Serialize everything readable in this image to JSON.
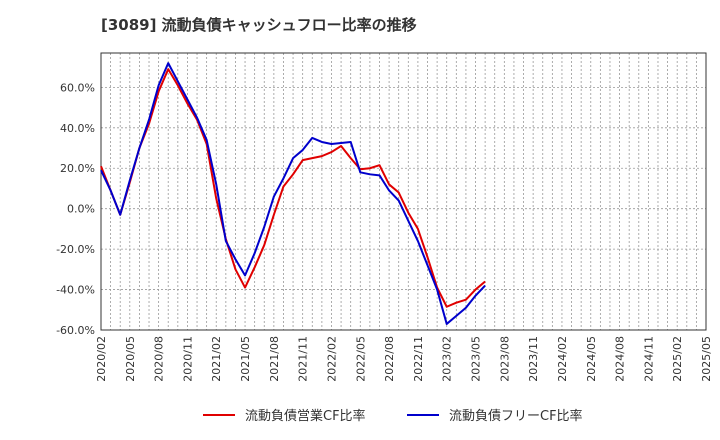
{
  "chart_data": {
    "type": "line",
    "title": "[3089]  流動負債キャッシュフロー比率の推移",
    "y_tick_labels": [
      "60.0%",
      "40.0%",
      "20.0%",
      "0.0%",
      "-20.0%",
      "-40.0%",
      "-60.0%"
    ],
    "y_ticks": [
      60,
      40,
      20,
      0,
      -20,
      -40,
      -60
    ],
    "ylim": [
      -60,
      77
    ],
    "x_tick_labels": [
      "2020/02",
      "2020/05",
      "2020/08",
      "2020/11",
      "2021/02",
      "2021/05",
      "2021/08",
      "2021/11",
      "2022/02",
      "2022/05",
      "2022/08",
      "2022/11",
      "2023/02",
      "2023/05",
      "2023/08",
      "2023/11",
      "2024/02",
      "2024/05",
      "2024/08",
      "2024/11",
      "2025/02",
      "2025/05"
    ],
    "grid": true,
    "legend_position": "bottom",
    "series": [
      {
        "name": "流動負債営業CF比率",
        "color": "#e00000",
        "values": [
          21,
          9,
          -3,
          13,
          30,
          42,
          58,
          69,
          61,
          52,
          44,
          32,
          5,
          -15,
          -30,
          -39,
          -29,
          -18,
          -3,
          11,
          17,
          24,
          25,
          26,
          28,
          31,
          25,
          19.5,
          20,
          21.5,
          12,
          8,
          -2,
          -10,
          -24,
          -39,
          -48.5,
          -46.5,
          -45,
          -40,
          -36
        ]
      },
      {
        "name": "流動負債フリーCF比率",
        "color": "#0000cc",
        "values": [
          19,
          9,
          -3,
          14,
          30,
          44,
          61,
          72,
          63,
          54,
          45,
          34,
          12,
          -16,
          -25,
          -33,
          -22,
          -9,
          6,
          15,
          25,
          29,
          35,
          33,
          32,
          32.5,
          33,
          18,
          17,
          16.5,
          9,
          4,
          -6,
          -16,
          -28,
          -40,
          -57,
          -53,
          -49,
          -43,
          -38
        ]
      }
    ]
  }
}
